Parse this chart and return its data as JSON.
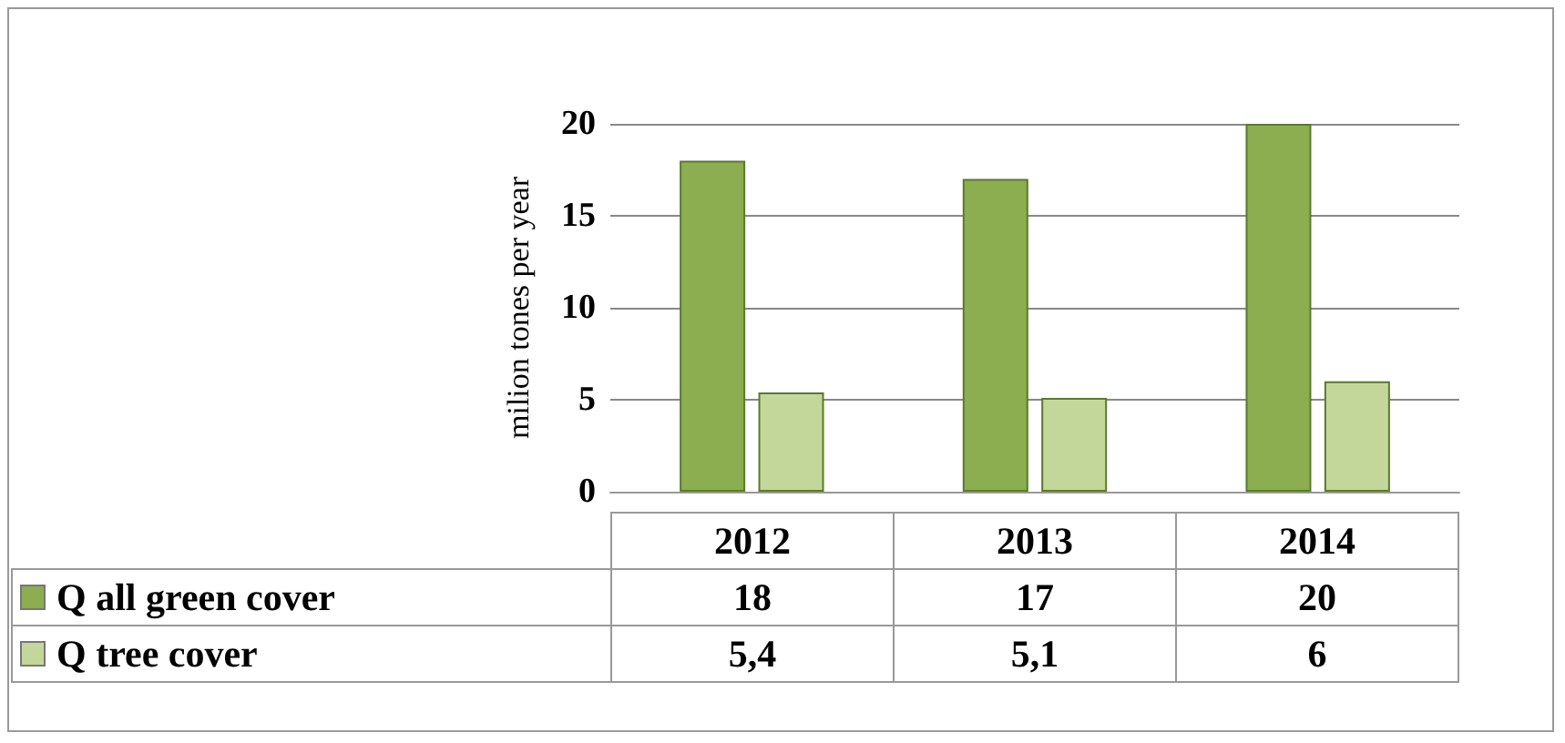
{
  "chart_data": {
    "type": "bar",
    "ylabel": "milion tones per year",
    "categories": [
      "2012",
      "2013",
      "2014"
    ],
    "series": [
      {
        "name": "Q all green cover",
        "color": "#8cad50",
        "values": [
          18,
          17,
          20
        ],
        "value_labels": [
          "18",
          "17",
          "20"
        ]
      },
      {
        "name": "Q tree cover",
        "color": "#c4d79b",
        "values": [
          5.4,
          5.1,
          6
        ],
        "value_labels": [
          "5,4",
          "5,1",
          "6"
        ]
      }
    ],
    "ylim": [
      0,
      20
    ],
    "yticks": [
      0,
      5,
      10,
      15,
      20
    ],
    "grid": "y",
    "legend": "bottom"
  }
}
